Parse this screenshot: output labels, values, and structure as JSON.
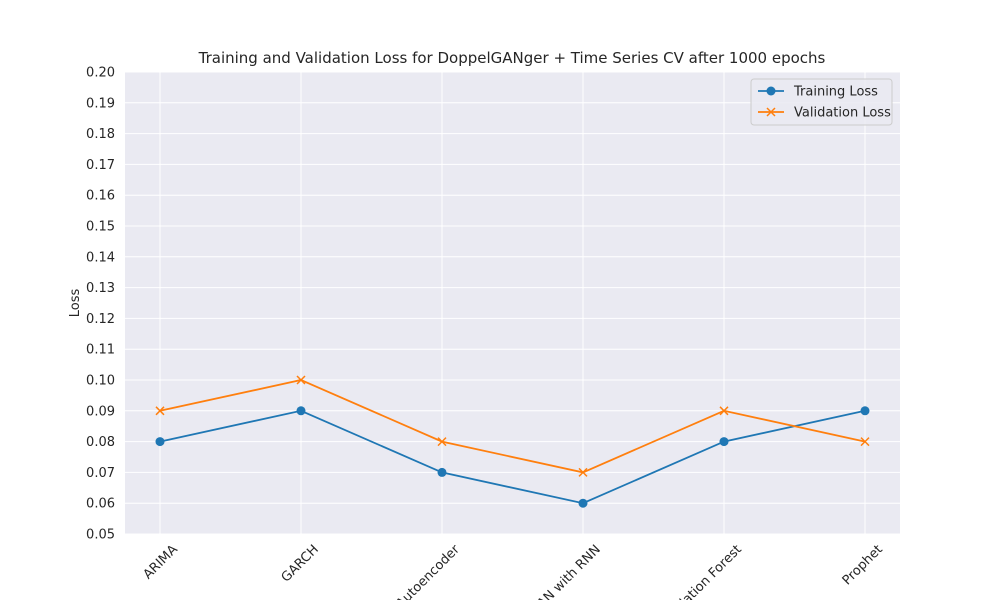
{
  "chart_data": {
    "type": "line",
    "title": "Training and Validation Loss for DoppelGANger + Time Series CV after 1000 epochs",
    "xlabel": "",
    "ylabel": "Loss",
    "categories": [
      "ARIMA",
      "GARCH",
      "Autoencoder",
      "GAN with RNN",
      "Isolation Forest",
      "Prophet"
    ],
    "ylim": [
      0.05,
      0.2
    ],
    "yticks": [
      "0.05",
      "0.06",
      "0.07",
      "0.08",
      "0.09",
      "0.10",
      "0.11",
      "0.12",
      "0.13",
      "0.14",
      "0.15",
      "0.16",
      "0.17",
      "0.18",
      "0.19",
      "0.20"
    ],
    "grid": true,
    "legend_position": "top-right",
    "background_color": "#eaeaf2",
    "series": [
      {
        "name": "Training Loss",
        "values": [
          0.08,
          0.09,
          0.07,
          0.06,
          0.08,
          0.09
        ],
        "color": "#1f77b4",
        "marker": "circle"
      },
      {
        "name": "Validation Loss",
        "values": [
          0.09,
          0.1,
          0.08,
          0.07,
          0.09,
          0.08
        ],
        "color": "#ff7f0e",
        "marker": "x"
      }
    ]
  }
}
